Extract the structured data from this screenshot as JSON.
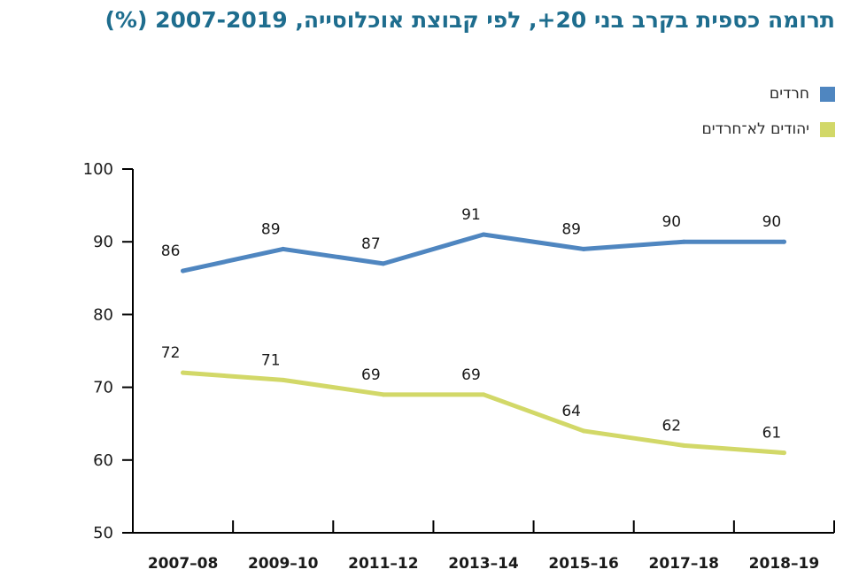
{
  "chart_data": {
    "type": "line",
    "title": "תרומה כספית בקרב בני 20+, לפי קבוצת אוכלוסייה, 2007-2019 (%)",
    "categories": [
      "2007–08",
      "2009–10",
      "2011–12",
      "2013–14",
      "2015–16",
      "2017–18",
      "2018–19"
    ],
    "series": [
      {
        "name": "חרדים",
        "color": "#4f86c0",
        "values": [
          86,
          89,
          87,
          91,
          89,
          90,
          90
        ]
      },
      {
        "name": "יהודים לא־חרדים",
        "color": "#d2d868",
        "values": [
          72,
          71,
          69,
          69,
          64,
          62,
          61
        ]
      }
    ],
    "ylim": [
      50,
      100
    ],
    "yticks": [
      50,
      60,
      70,
      80,
      90,
      100
    ],
    "grid": false,
    "legend": "top-right"
  }
}
